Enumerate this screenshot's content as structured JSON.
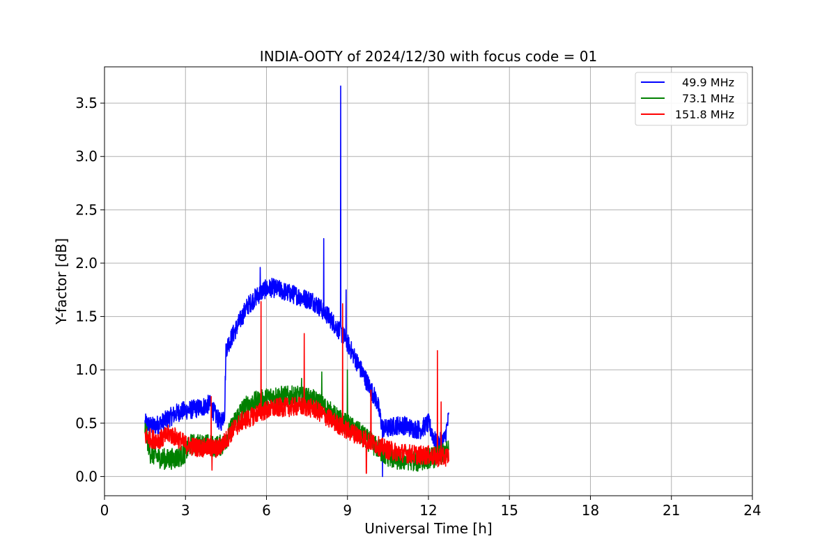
{
  "chart_data": {
    "type": "line",
    "title": "INDIA-OOTY of 2024/12/30 with focus code = 01",
    "xlabel": "Universal Time [h]",
    "ylabel": "Y-factor [dB]",
    "xlim": [
      0,
      24
    ],
    "ylim": [
      -0.18,
      3.84
    ],
    "xticks": [
      0,
      3,
      6,
      9,
      12,
      15,
      18,
      21,
      24
    ],
    "xtick_labels": [
      "0",
      "3",
      "6",
      "9",
      "12",
      "15",
      "18",
      "21",
      "24"
    ],
    "yticks": [
      0.0,
      0.5,
      1.0,
      1.5,
      2.0,
      2.5,
      3.0,
      3.5
    ],
    "ytick_labels": [
      "0.0",
      "0.5",
      "1.0",
      "1.5",
      "2.0",
      "2.5",
      "3.0",
      "3.5"
    ],
    "grid": true,
    "legend_position": "top-right",
    "noise_amplitude": [
      0.09,
      0.1,
      0.09
    ],
    "series": [
      {
        "name": "49.9 MHz",
        "color": "#0000ff",
        "x": [
          1.5,
          1.8,
          2.1,
          2.4,
          2.7,
          3.0,
          3.3,
          3.6,
          3.9,
          4.1,
          4.3,
          4.45,
          4.5,
          4.7,
          5.0,
          5.3,
          5.6,
          5.9,
          6.2,
          6.5,
          6.8,
          7.1,
          7.4,
          7.7,
          8.0,
          8.3,
          8.6,
          8.9,
          9.2,
          9.5,
          9.8,
          10.1,
          10.3,
          10.5,
          10.8,
          11.1,
          11.4,
          11.7,
          12.0,
          12.3,
          12.6,
          12.75
        ],
        "y": [
          0.5,
          0.47,
          0.5,
          0.55,
          0.6,
          0.62,
          0.63,
          0.65,
          0.68,
          0.58,
          0.5,
          0.6,
          1.2,
          1.3,
          1.45,
          1.6,
          1.68,
          1.75,
          1.77,
          1.75,
          1.72,
          1.7,
          1.67,
          1.65,
          1.58,
          1.5,
          1.4,
          1.3,
          1.15,
          1.0,
          0.85,
          0.7,
          0.45,
          0.45,
          0.48,
          0.48,
          0.45,
          0.44,
          0.5,
          0.3,
          0.35,
          0.55
        ]
      },
      {
        "name": "73.1 MHz",
        "color": "#008000",
        "x": [
          1.5,
          1.7,
          2.0,
          2.3,
          2.6,
          2.9,
          3.2,
          3.5,
          3.8,
          4.1,
          4.4,
          4.7,
          5.0,
          5.3,
          5.6,
          5.9,
          6.2,
          6.5,
          6.8,
          7.1,
          7.4,
          7.7,
          8.0,
          8.3,
          8.6,
          8.9,
          9.2,
          9.5,
          9.8,
          10.1,
          10.4,
          10.7,
          11.0,
          11.3,
          11.6,
          11.9,
          12.2,
          12.5,
          12.75
        ],
        "y": [
          0.45,
          0.22,
          0.18,
          0.16,
          0.17,
          0.2,
          0.3,
          0.3,
          0.3,
          0.28,
          0.3,
          0.45,
          0.6,
          0.67,
          0.7,
          0.72,
          0.75,
          0.75,
          0.75,
          0.75,
          0.74,
          0.72,
          0.68,
          0.62,
          0.55,
          0.5,
          0.45,
          0.4,
          0.33,
          0.27,
          0.2,
          0.17,
          0.15,
          0.16,
          0.14,
          0.17,
          0.18,
          0.2,
          0.25
        ]
      },
      {
        "name": "151.8 MHz",
        "color": "#ff0000",
        "x": [
          1.5,
          1.8,
          2.1,
          2.4,
          2.7,
          3.0,
          3.3,
          3.6,
          3.9,
          4.2,
          4.5,
          4.8,
          5.1,
          5.4,
          5.7,
          6.0,
          6.3,
          6.6,
          6.9,
          7.2,
          7.5,
          7.8,
          8.1,
          8.4,
          8.7,
          9.0,
          9.3,
          9.6,
          9.9,
          10.2,
          10.5,
          10.8,
          11.1,
          11.4,
          11.7,
          12.0,
          12.3,
          12.6,
          12.75
        ],
        "y": [
          0.38,
          0.35,
          0.35,
          0.4,
          0.36,
          0.3,
          0.28,
          0.27,
          0.27,
          0.26,
          0.34,
          0.45,
          0.52,
          0.55,
          0.6,
          0.62,
          0.64,
          0.65,
          0.65,
          0.66,
          0.65,
          0.63,
          0.58,
          0.53,
          0.48,
          0.43,
          0.4,
          0.36,
          0.32,
          0.28,
          0.25,
          0.23,
          0.22,
          0.21,
          0.2,
          0.2,
          0.18,
          0.18,
          0.2
        ]
      }
    ],
    "spikes": [
      {
        "series": 0,
        "x": 8.75,
        "y": 3.66
      },
      {
        "series": 0,
        "x": 8.12,
        "y": 2.23
      },
      {
        "series": 0,
        "x": 5.77,
        "y": 1.96
      },
      {
        "series": 0,
        "x": 8.95,
        "y": 1.75
      },
      {
        "series": 1,
        "x": 8.05,
        "y": 0.98
      },
      {
        "series": 1,
        "x": 9.0,
        "y": 1.0
      },
      {
        "series": 1,
        "x": 7.3,
        "y": 0.92
      },
      {
        "series": 2,
        "x": 5.8,
        "y": 1.64
      },
      {
        "series": 2,
        "x": 8.82,
        "y": 1.62
      },
      {
        "series": 2,
        "x": 7.4,
        "y": 1.34
      },
      {
        "series": 2,
        "x": 12.33,
        "y": 1.18
      },
      {
        "series": 2,
        "x": 9.87,
        "y": 0.81
      },
      {
        "series": 2,
        "x": 3.95,
        "y": 0.75
      },
      {
        "series": 2,
        "x": 12.47,
        "y": 0.7
      }
    ],
    "dips": [
      {
        "series": 2,
        "x": 3.98,
        "y": 0.06
      },
      {
        "series": 2,
        "x": 9.7,
        "y": 0.03
      },
      {
        "series": 0,
        "x": 10.3,
        "y": 0.0
      }
    ]
  }
}
